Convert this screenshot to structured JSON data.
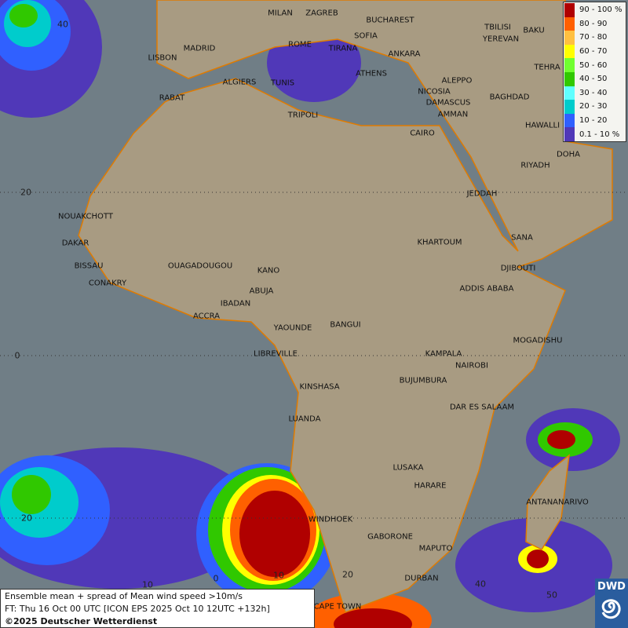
{
  "map": {
    "cities": [
      "MILAN",
      "ZAGREB",
      "BUCHAREST",
      "SOFIA",
      "ROME",
      "TIRANA",
      "MADRID",
      "LISBON",
      "ANKARA",
      "TBILISI",
      "YEREVAN",
      "BAKU",
      "TEHRA",
      "ATHENS",
      "ALGIERS",
      "TUNIS",
      "RABAT",
      "ALEPPO",
      "NICOSIA",
      "BAGHDAD",
      "DAMASCUS",
      "AMMAN",
      "TRIPOLI",
      "CAIRO",
      "HAWALLI",
      "DOHA",
      "RIYADH",
      "JEDDAH",
      "NOUAKCHOTT",
      "KHARTOUM",
      "SANA",
      "DAKAR",
      "BISSAU",
      "OUAGADOUGOU",
      "KANO",
      "DJIBOUTI",
      "CONAKRY",
      "ABUJA",
      "ADDIS ABABA",
      "IBADAN",
      "ACCRA",
      "BANGUI",
      "YAOUNDE",
      "MOGADISHU",
      "LIBREVILLE",
      "KAMPALA",
      "NAIROBI",
      "KINSHASA",
      "BUJUMBURA",
      "DAR ES SALAAM",
      "LUANDA",
      "LUSAKA",
      "HARARE",
      "ANTANANARIVO",
      "WINDHOEK",
      "GABORONE",
      "MAPUTO",
      "DURBAN",
      "CAPE TOWN"
    ],
    "grid_labels": [
      "40",
      "20",
      "0",
      "20",
      "10",
      "0",
      "10",
      "20",
      "40",
      "50"
    ]
  },
  "legend": {
    "items": [
      {
        "label": "90 - 100 %",
        "color": "#b00000"
      },
      {
        "label": "80 - 90",
        "color": "#ff6000"
      },
      {
        "label": "70 - 80",
        "color": "#ffc040"
      },
      {
        "label": "60 - 70",
        "color": "#ffff00"
      },
      {
        "label": "50 - 60",
        "color": "#70ff30"
      },
      {
        "label": "40 - 50",
        "color": "#30c800"
      },
      {
        "label": "30 - 40",
        "color": "#60ffff"
      },
      {
        "label": "20 - 30",
        "color": "#00cccc"
      },
      {
        "label": "10 - 20",
        "color": "#3060ff"
      },
      {
        "label": "0.1 - 10 %",
        "color": "#5038b8"
      }
    ]
  },
  "info": {
    "title": "Ensemble mean + spread of Mean wind speed >10m/s",
    "forecast": "FT: Thu 16 Oct 00 UTC [ICON EPS 2025 Oct 10 12UTC +132h]",
    "copyright": "©2025 Deutscher Wetterdienst"
  },
  "logo": {
    "text": "DWD"
  }
}
